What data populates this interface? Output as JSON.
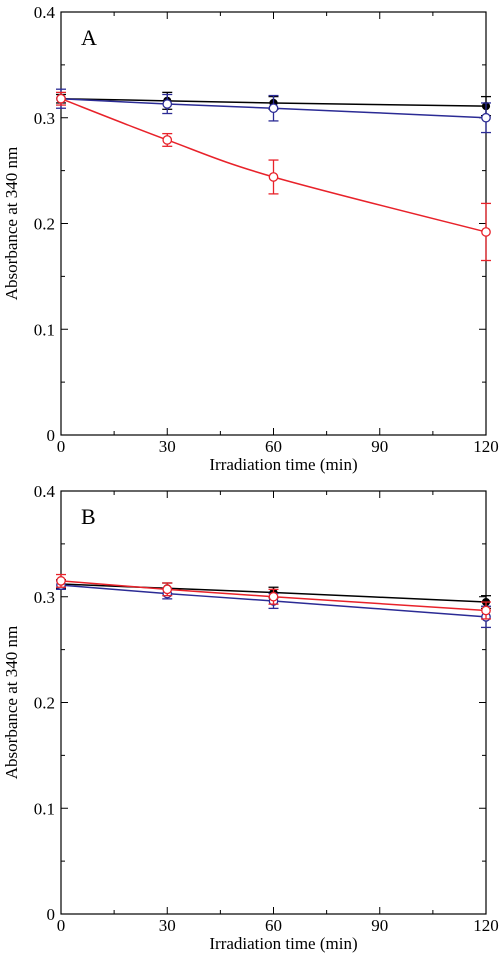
{
  "chart_data": [
    {
      "type": "line",
      "panel_label": "A",
      "xlabel": "Irradiation time (min)",
      "ylabel": "Absorbance at 340 nm",
      "xlim": [
        0,
        120
      ],
      "ylim": [
        0,
        0.4
      ],
      "xticks": [
        "0",
        "30",
        "60",
        "90",
        "120"
      ],
      "yticks": [
        "0",
        "0.1",
        "0.2",
        "0.3",
        "0.4"
      ],
      "grid": false,
      "series": [
        {
          "color": "#000000",
          "marker": "filled-circle",
          "x": [
            0,
            30,
            60,
            120
          ],
          "y": [
            0.318,
            0.316,
            0.314,
            0.311
          ],
          "err": [
            0.004,
            0.008,
            0.006,
            0.009
          ]
        },
        {
          "color": "#2b2b95",
          "marker": "open-circle",
          "x": [
            0,
            30,
            60,
            120
          ],
          "y": [
            0.318,
            0.313,
            0.309,
            0.3
          ],
          "err": [
            0.009,
            0.009,
            0.012,
            0.014
          ]
        },
        {
          "color": "#e8222a",
          "marker": "open-circle",
          "x": [
            0,
            30,
            60,
            120
          ],
          "y": [
            0.318,
            0.279,
            0.244,
            0.192
          ],
          "err": [
            0.006,
            0.006,
            0.016,
            0.027
          ]
        }
      ]
    },
    {
      "type": "line",
      "panel_label": "B",
      "xlabel": "Irradiation time (min)",
      "ylabel": "Absorbance at 340 nm",
      "xlim": [
        0,
        120
      ],
      "ylim": [
        0,
        0.4
      ],
      "xticks": [
        "0",
        "30",
        "60",
        "90",
        "120"
      ],
      "yticks": [
        "0",
        "0.1",
        "0.2",
        "0.3",
        "0.4"
      ],
      "grid": false,
      "series": [
        {
          "color": "#000000",
          "marker": "filled-circle",
          "x": [
            0,
            30,
            60,
            120
          ],
          "y": [
            0.312,
            0.308,
            0.304,
            0.295
          ],
          "err": [
            0.004,
            0.005,
            0.005,
            0.006
          ]
        },
        {
          "color": "#2b2b95",
          "marker": "open-circle",
          "x": [
            0,
            30,
            60,
            120
          ],
          "y": [
            0.311,
            0.303,
            0.296,
            0.281
          ],
          "err": [
            0.004,
            0.005,
            0.007,
            0.01
          ]
        },
        {
          "color": "#e8222a",
          "marker": "open-circle",
          "x": [
            0,
            30,
            60,
            120
          ],
          "y": [
            0.315,
            0.307,
            0.3,
            0.287
          ],
          "err": [
            0.006,
            0.006,
            0.007,
            0.008
          ]
        }
      ]
    }
  ]
}
